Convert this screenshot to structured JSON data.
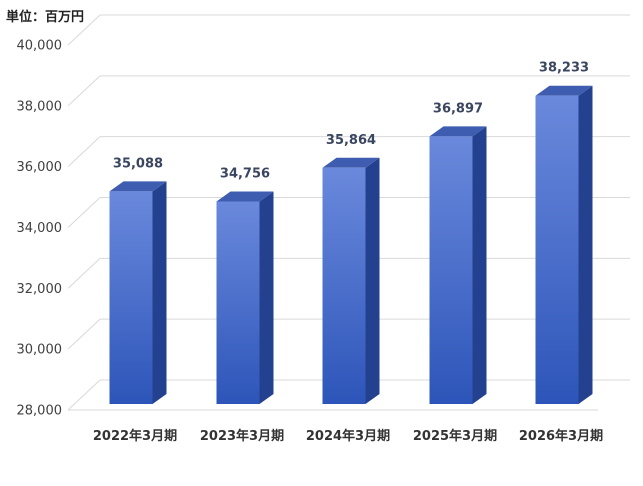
{
  "unit_label": "単位：百万円",
  "chart_data": {
    "type": "bar",
    "categories": [
      "2022年3月期",
      "2023年3月期",
      "2024年3月期",
      "2025年3月期",
      "2026年3月期"
    ],
    "values": [
      35088,
      34756,
      35864,
      36897,
      38233
    ],
    "data_labels": [
      "35,088",
      "34,756",
      "35,864",
      "36,897",
      "38,233"
    ],
    "y_ticks": [
      28000,
      30000,
      32000,
      34000,
      36000,
      38000,
      40000
    ],
    "y_tick_labels": [
      "28,000",
      "30,000",
      "32,000",
      "34,000",
      "36,000",
      "38,000",
      "40,000"
    ],
    "ylim": [
      28000,
      40000
    ],
    "grid": true,
    "style": "3d-column",
    "colors": {
      "bar_top": "#6a89dc",
      "bar_bottom": "#2d55b9",
      "bar_side": "#23418f",
      "bar_cap": "#3f5db0",
      "grid": "#d9d9d9"
    }
  }
}
